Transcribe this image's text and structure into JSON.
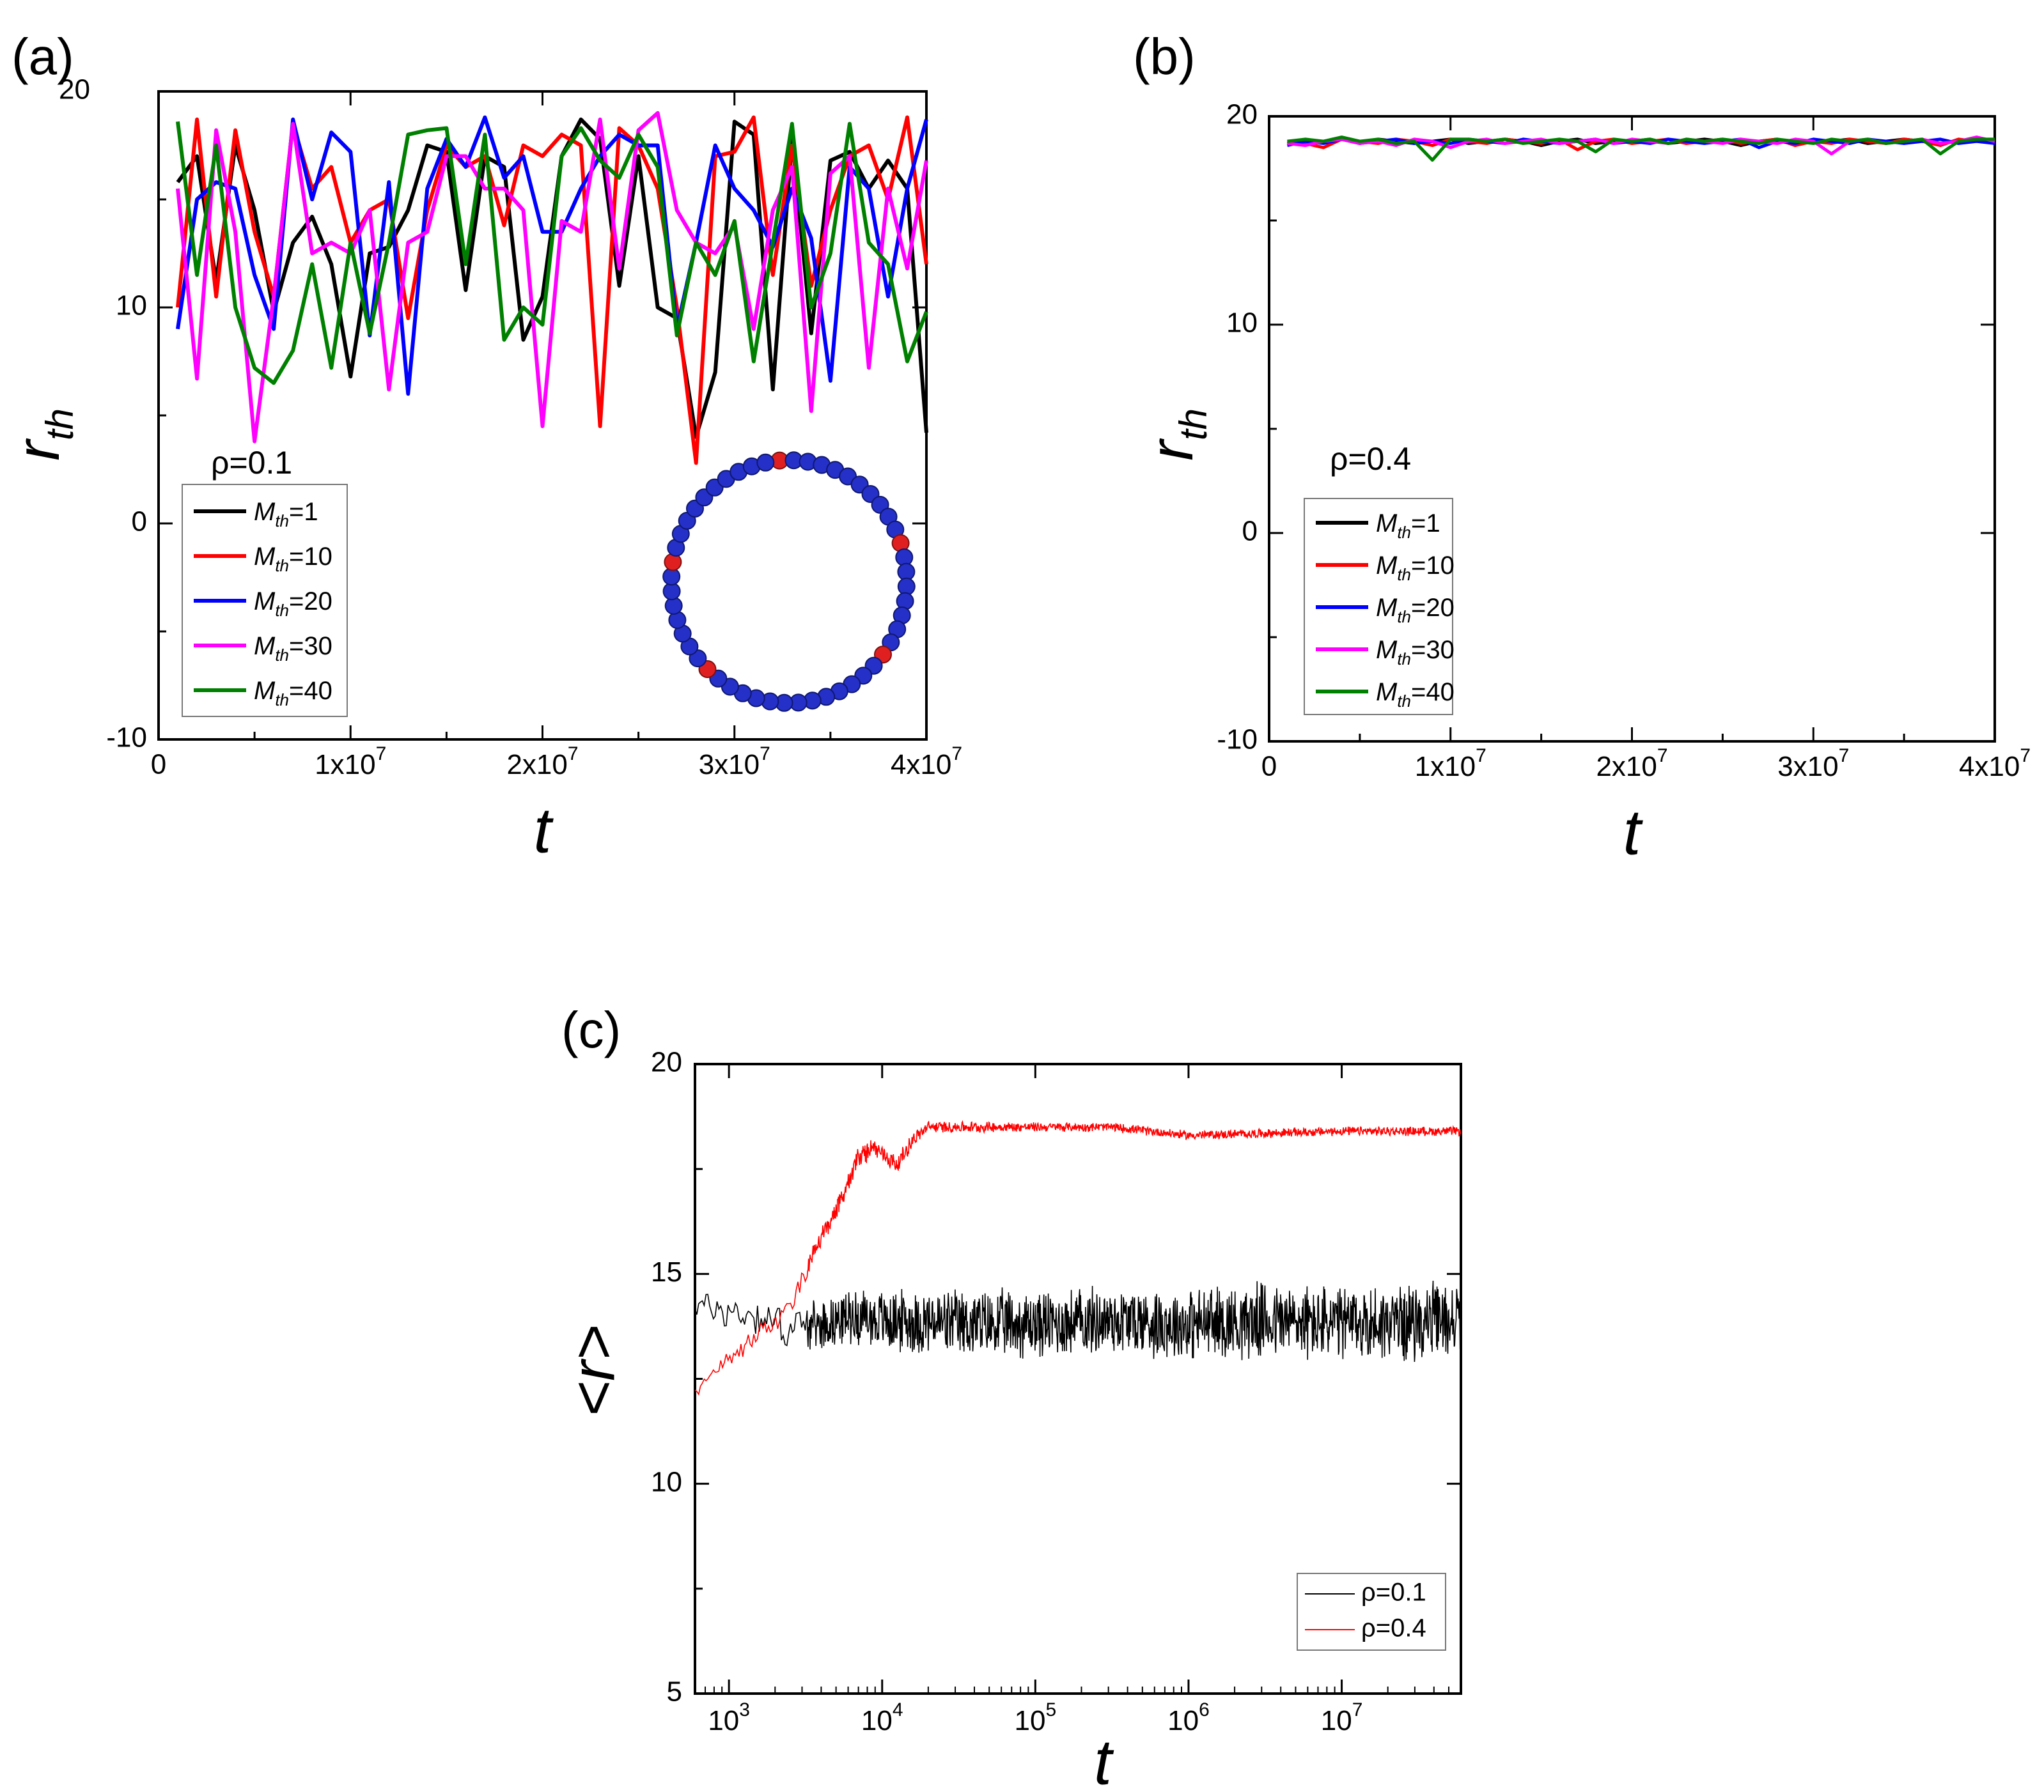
{
  "chart_data": [
    {
      "panel": "(a)",
      "type": "line",
      "xlabel": "t",
      "ylabel": "r",
      "ylabel_subscript": "th",
      "xlim": [
        0,
        40000000
      ],
      "ylim": [
        -10,
        20
      ],
      "xticks": [
        "0",
        "1x10",
        "2x10",
        "3x10",
        "4x10"
      ],
      "xtick_exponent": "7",
      "yticks": [
        "-10",
        "0",
        "10",
        "20"
      ],
      "annotation": "ρ=0.1",
      "legend_symbol": "M",
      "legend_subscript": "th",
      "inset": "ring polymer of blue beads with five red beads",
      "x": [
        1000000,
        2000000,
        3000000,
        4000000,
        5000000,
        6000000,
        7000000,
        8000000,
        9000000,
        10000000,
        11000000,
        12000000,
        13000000,
        14000000,
        15000000,
        16000000,
        17000000,
        18000000,
        19000000,
        20000000,
        21000000,
        22000000,
        23000000,
        24000000,
        25000000,
        26000000,
        27000000,
        28000000,
        29000000,
        30000000,
        31000000,
        32000000,
        33000000,
        34000000,
        35000000,
        36000000,
        37000000,
        38000000,
        39000000,
        40000000
      ],
      "series": [
        {
          "name": "=1",
          "color": "#000000",
          "values": [
            15.8,
            17.0,
            11.2,
            17.5,
            14.5,
            9.8,
            13.0,
            14.2,
            12.0,
            6.8,
            12.5,
            12.8,
            14.5,
            17.5,
            17.2,
            10.8,
            17.0,
            16.5,
            8.5,
            10.5,
            17.0,
            18.7,
            17.8,
            11.0,
            17.0,
            10.0,
            9.5,
            4.0,
            7.0,
            18.6,
            18.0,
            6.2,
            17.8,
            8.8,
            16.8,
            17.2,
            15.5,
            16.8,
            15.5,
            4.2
          ]
        },
        {
          "name": "=10",
          "color": "#ff0000",
          "values": [
            10.0,
            18.7,
            10.5,
            18.2,
            13.5,
            10.5,
            18.5,
            15.5,
            16.5,
            13.0,
            14.5,
            15.0,
            9.5,
            14.5,
            17.5,
            16.5,
            17.0,
            13.8,
            17.5,
            17.0,
            18.0,
            17.5,
            4.5,
            18.3,
            17.5,
            15.5,
            10.0,
            2.8,
            17.0,
            17.2,
            18.8,
            11.5,
            17.5,
            11.0,
            14.5,
            17.0,
            17.5,
            15.0,
            18.8,
            12.0
          ]
        },
        {
          "name": "=20",
          "color": "#0000ff",
          "values": [
            9.0,
            15.0,
            15.8,
            15.5,
            11.5,
            9.0,
            18.7,
            15.0,
            18.1,
            17.2,
            8.7,
            15.8,
            6.0,
            15.5,
            17.8,
            16.5,
            18.8,
            16.0,
            17.0,
            13.5,
            13.5,
            15.5,
            17.0,
            18.0,
            17.5,
            17.5,
            9.0,
            13.0,
            17.5,
            15.5,
            14.5,
            12.8,
            15.5,
            13.2,
            6.6,
            16.5,
            15.5,
            10.5,
            15.5,
            18.7
          ]
        },
        {
          "name": "=30",
          "color": "#ff00ff",
          "values": [
            15.5,
            6.7,
            18.2,
            13.5,
            3.8,
            10.5,
            18.5,
            12.5,
            13.0,
            12.5,
            14.5,
            6.2,
            13.0,
            13.5,
            17.0,
            17.0,
            15.5,
            15.5,
            14.5,
            4.5,
            14.0,
            13.5,
            18.7,
            11.8,
            18.2,
            19.0,
            14.5,
            13.0,
            12.5,
            13.8,
            9.0,
            14.5,
            16.5,
            5.2,
            16.2,
            17.0,
            7.2,
            15.5,
            11.8,
            16.8
          ]
        },
        {
          "name": "=40",
          "color": "#008000",
          "values": [
            18.6,
            11.5,
            17.5,
            10.0,
            7.2,
            6.5,
            8.0,
            12.0,
            7.2,
            13.0,
            8.8,
            13.0,
            18.0,
            18.2,
            18.3,
            12.0,
            18.0,
            8.5,
            10.0,
            9.2,
            17.0,
            18.3,
            16.8,
            16.0,
            18.0,
            16.5,
            8.7,
            13.0,
            11.5,
            14.0,
            7.5,
            13.0,
            18.5,
            10.0,
            12.5,
            18.5,
            13.0,
            12.0,
            7.5,
            9.8
          ]
        }
      ]
    },
    {
      "panel": "(b)",
      "type": "line",
      "xlabel": "t",
      "ylabel": "r",
      "ylabel_subscript": "th",
      "xlim": [
        0,
        40000000
      ],
      "ylim": [
        -10,
        20
      ],
      "xticks": [
        "0",
        "1x10",
        "2x10",
        "3x10",
        "4x10"
      ],
      "xtick_exponent": "7",
      "yticks": [
        "-10",
        "0",
        "10",
        "20"
      ],
      "annotation": "ρ=0.4",
      "legend_symbol": "M",
      "legend_subscript": "th",
      "x": [
        1000000,
        2000000,
        3000000,
        4000000,
        5000000,
        6000000,
        7000000,
        8000000,
        9000000,
        10000000,
        11000000,
        12000000,
        13000000,
        14000000,
        15000000,
        16000000,
        17000000,
        18000000,
        19000000,
        20000000,
        21000000,
        22000000,
        23000000,
        24000000,
        25000000,
        26000000,
        27000000,
        28000000,
        29000000,
        30000000,
        31000000,
        32000000,
        33000000,
        34000000,
        35000000,
        36000000,
        37000000,
        38000000,
        39000000,
        40000000
      ],
      "series": [
        {
          "name": "=1",
          "color": "#000000",
          "values": [
            18.7,
            18.8,
            18.8,
            18.9,
            18.7,
            18.9,
            18.8,
            18.7,
            18.8,
            18.9,
            18.7,
            18.8,
            18.9,
            18.8,
            18.6,
            18.8,
            18.9,
            18.7,
            18.8,
            18.8,
            18.9,
            18.7,
            18.8,
            18.9,
            18.8,
            18.6,
            18.8,
            18.9,
            18.7,
            18.8,
            18.8,
            18.9,
            18.7,
            18.8,
            18.9,
            18.8,
            18.7,
            18.8,
            18.9,
            18.8
          ]
        },
        {
          "name": "=10",
          "color": "#ff0000",
          "values": [
            18.8,
            18.7,
            18.5,
            18.9,
            18.8,
            18.7,
            18.9,
            18.8,
            18.6,
            18.9,
            18.8,
            18.7,
            18.9,
            18.8,
            18.7,
            18.9,
            18.4,
            18.8,
            18.9,
            18.7,
            18.8,
            18.9,
            18.7,
            18.8,
            18.9,
            18.7,
            18.8,
            18.9,
            18.6,
            18.8,
            18.7,
            18.9,
            18.8,
            18.7,
            18.9,
            18.8,
            18.6,
            18.9,
            18.8,
            18.8
          ]
        },
        {
          "name": "=20",
          "color": "#0000ff",
          "values": [
            18.6,
            18.8,
            18.7,
            18.9,
            18.7,
            18.8,
            18.9,
            18.7,
            18.8,
            18.7,
            18.9,
            18.8,
            18.7,
            18.9,
            18.8,
            18.7,
            18.8,
            18.9,
            18.7,
            18.8,
            18.7,
            18.9,
            18.8,
            18.7,
            18.8,
            18.9,
            18.5,
            18.8,
            18.7,
            18.9,
            18.8,
            18.7,
            18.9,
            18.8,
            18.7,
            18.8,
            18.9,
            18.7,
            18.8,
            18.7
          ]
        },
        {
          "name": "=30",
          "color": "#ff00ff",
          "values": [
            18.7,
            18.6,
            18.8,
            18.9,
            18.7,
            18.8,
            18.6,
            18.9,
            18.8,
            18.5,
            18.8,
            18.9,
            18.7,
            18.8,
            18.9,
            18.7,
            18.8,
            18.9,
            18.7,
            18.9,
            18.8,
            18.7,
            18.9,
            18.8,
            18.7,
            18.9,
            18.8,
            18.7,
            18.9,
            18.8,
            18.2,
            18.8,
            18.9,
            18.7,
            18.8,
            18.9,
            18.7,
            18.8,
            19.0,
            18.8
          ]
        },
        {
          "name": "=40",
          "color": "#008000",
          "values": [
            18.8,
            18.9,
            18.8,
            19.0,
            18.8,
            18.9,
            18.7,
            18.8,
            17.9,
            18.9,
            18.9,
            18.8,
            18.9,
            18.7,
            18.8,
            18.9,
            18.8,
            18.3,
            18.9,
            18.8,
            18.9,
            18.7,
            18.9,
            18.8,
            18.9,
            18.8,
            18.7,
            18.9,
            18.8,
            18.7,
            18.9,
            18.8,
            18.9,
            18.7,
            18.8,
            18.9,
            18.2,
            18.8,
            18.9,
            18.9
          ]
        }
      ]
    },
    {
      "panel": "(c)",
      "type": "line",
      "xscale": "log",
      "xlabel": "t",
      "ylabel": "<r>",
      "xlim": [
        600,
        60000000
      ],
      "ylim": [
        5,
        20
      ],
      "xticks_base": "10",
      "xticks_exponents": [
        "3",
        "4",
        "5",
        "6",
        "7"
      ],
      "yticks": [
        "5",
        "10",
        "15",
        "20"
      ],
      "legend_position": "bottom-right",
      "series": [
        {
          "name": "ρ=0.1",
          "color": "#000000",
          "log10_t_knots": [
            2.78,
            3.0,
            3.2,
            3.4,
            3.6,
            3.8,
            4.0,
            4.5,
            5.0,
            5.5,
            6.0,
            6.5,
            7.0,
            7.78
          ],
          "mean_values": [
            14.3,
            14.1,
            14.0,
            13.7,
            13.8,
            14.0,
            13.9,
            13.8,
            13.8,
            13.9,
            13.8,
            13.9,
            13.8,
            13.9
          ],
          "fluctuation_amplitude": [
            0.4,
            0.5,
            0.5,
            0.6,
            0.6,
            0.7,
            0.8,
            0.9,
            0.9,
            0.9,
            0.95,
            1.0,
            1.0,
            1.0
          ]
        },
        {
          "name": "ρ=0.4",
          "color": "#ff0000",
          "log10_t_knots": [
            2.78,
            3.0,
            3.2,
            3.4,
            3.55,
            3.7,
            3.85,
            3.95,
            4.1,
            4.2,
            4.3,
            4.5,
            5.0,
            5.5,
            6.0,
            7.0,
            7.78
          ],
          "mean_values": [
            12.2,
            13.0,
            13.5,
            14.2,
            15.5,
            16.5,
            17.8,
            18.0,
            17.6,
            18.2,
            18.5,
            18.5,
            18.5,
            18.5,
            18.3,
            18.4,
            18.4
          ],
          "fluctuation_amplitude": [
            0.2,
            0.3,
            0.3,
            0.3,
            0.3,
            0.3,
            0.3,
            0.25,
            0.25,
            0.2,
            0.15,
            0.15,
            0.12,
            0.12,
            0.12,
            0.12,
            0.12
          ]
        }
      ]
    }
  ]
}
